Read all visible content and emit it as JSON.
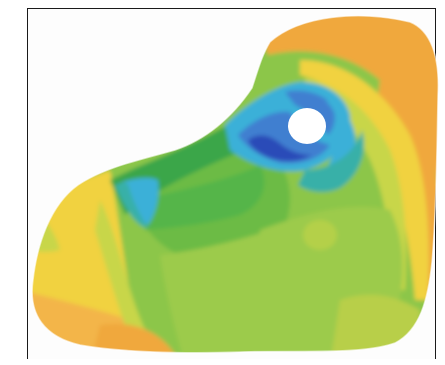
{
  "figure": {
    "kind": "contour-map",
    "palette": {
      "orange": "#f0a83c",
      "light_orange": "#f3b549",
      "yellow": "#f1d23f",
      "yellow_green": "#c8d64a",
      "light_green": "#9ccb4b",
      "green": "#6cbb45",
      "mid_green": "#55b548",
      "deep_green": "#3aa64a",
      "teal": "#38b0a8",
      "cyan": "#3ab0d8",
      "blue": "#3f7fd0",
      "dark_blue": "#2b4bb8",
      "hole": "#ffffff",
      "frame": "#1a1a1a"
    }
  }
}
